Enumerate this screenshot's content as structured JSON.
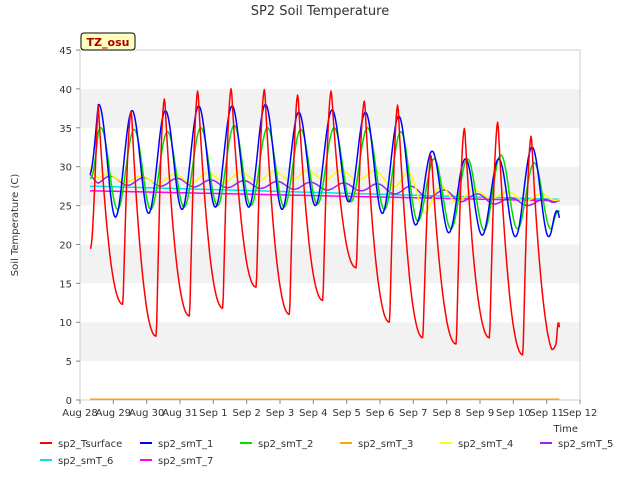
{
  "chart_data": {
    "type": "line",
    "title": "SP2 Soil Temperature",
    "xlabel": "Time",
    "ylabel": "Soil Temperature (C)",
    "ylim": [
      0,
      45
    ],
    "yticks": [
      0,
      5,
      10,
      15,
      20,
      25,
      30,
      35,
      40,
      45
    ],
    "xlim": [
      0,
      15
    ],
    "xtick_labels": [
      "Aug 28",
      "Aug 29",
      "Aug 30",
      "Aug 31",
      "Sep 1",
      "Sep 2",
      "Sep 3",
      "Sep 4",
      "Sep 5",
      "Sep 6",
      "Sep 7",
      "Sep 8",
      "Sep 9",
      "Sep 10",
      "Sep 11",
      "Sep 12"
    ],
    "station_label": "TZ_osu",
    "grid": "horizontal bands",
    "legend_position": "bottom",
    "data_start_day": 0.3,
    "data_end_day": 14.4,
    "series": [
      {
        "name": "sp2_Tsurface",
        "color": "#ff0000",
        "model": "surface",
        "peak_hour": 13,
        "daily_max": [
          38.5,
          37.2,
          38.8,
          39.8,
          40.1,
          40.0,
          39.3,
          39.8,
          38.5,
          38.0,
          31.5,
          35.0,
          35.8,
          34.0
        ],
        "daily_min": [
          15.5,
          12.3,
          8.2,
          10.8,
          11.8,
          14.5,
          11.0,
          12.8,
          17.0,
          10.0,
          8.0,
          7.2,
          8.0,
          5.8
        ],
        "start_value": 19.5,
        "end_value": 8.5
      },
      {
        "name": "sp2_smT_1",
        "color": "#0000ff",
        "model": "diurnal",
        "peak_hour": 13.5,
        "daily_max": [
          38.0,
          37.2,
          37.2,
          37.8,
          37.8,
          38.0,
          37.0,
          37.3,
          37.0,
          36.5,
          32.0,
          31.0,
          31.0,
          32.5
        ],
        "daily_min": [
          25.0,
          23.5,
          24.0,
          24.5,
          24.8,
          24.8,
          24.5,
          25.0,
          25.5,
          24.0,
          22.5,
          21.5,
          21.2,
          21.0
        ],
        "start_value": 29.0,
        "end_value": 23.0
      },
      {
        "name": "sp2_smT_2",
        "color": "#00dd00",
        "model": "diurnal",
        "peak_hour": 15,
        "daily_max": [
          35.0,
          34.8,
          34.5,
          35.0,
          35.3,
          35.0,
          34.8,
          35.0,
          35.0,
          34.5,
          31.0,
          31.0,
          31.5,
          30.5
        ],
        "daily_min": [
          25.5,
          24.5,
          24.5,
          24.8,
          25.0,
          25.0,
          24.8,
          25.2,
          25.5,
          24.5,
          23.0,
          22.0,
          21.8,
          22.0
        ],
        "start_value": 28.5,
        "end_value": 24.0
      },
      {
        "name": "sp2_smT_3",
        "color": "#ffa500",
        "model": "const",
        "value": 0.1
      },
      {
        "name": "sp2_smT_4",
        "color": "#ffff00",
        "model": "diurnal",
        "peak_hour": 20,
        "daily_max": [
          29.0,
          28.8,
          29.0,
          29.2,
          29.3,
          29.4,
          29.5,
          29.5,
          29.5,
          29.2,
          27.5,
          27.0,
          26.8,
          26.5
        ],
        "daily_min": [
          28.2,
          28.0,
          27.8,
          27.9,
          28.0,
          28.1,
          28.2,
          28.3,
          28.3,
          27.6,
          24.0,
          25.5,
          26.0,
          25.5
        ],
        "start_value": 29.8,
        "end_value": 25.8
      },
      {
        "name": "sp2_smT_5",
        "color": "#a020f0",
        "model": "diurnal",
        "peak_hour": 22,
        "daily_max": [
          28.8,
          28.6,
          28.5,
          28.3,
          28.2,
          28.1,
          28.0,
          27.9,
          27.8,
          27.5,
          27.0,
          26.5,
          26.0,
          25.8
        ],
        "daily_min": [
          27.7,
          27.6,
          27.5,
          27.4,
          27.3,
          27.2,
          27.1,
          27.0,
          26.9,
          26.5,
          26.0,
          25.5,
          25.2,
          25.0
        ],
        "start_value": 29.0,
        "end_value": 25.8
      },
      {
        "name": "sp2_smT_6",
        "color": "#00e5e5",
        "model": "linear",
        "start_value": 27.5,
        "end_value": 25.8
      },
      {
        "name": "sp2_smT_7",
        "color": "#ff00ff",
        "model": "linear",
        "start_value": 26.9,
        "end_value": 25.6
      }
    ]
  }
}
